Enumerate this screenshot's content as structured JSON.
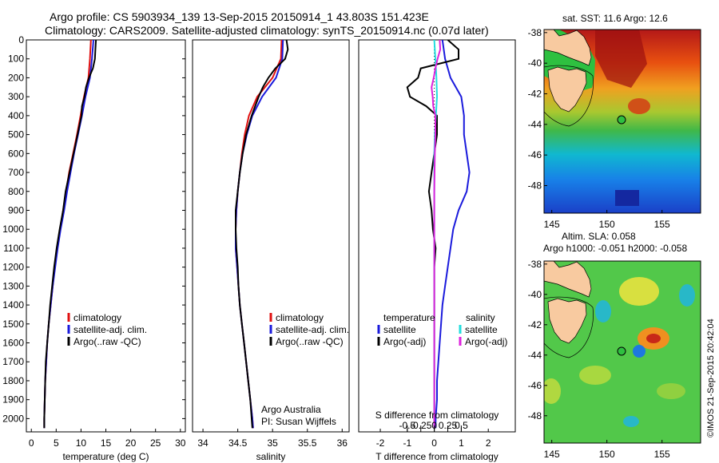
{
  "header": {
    "line1": "Argo profile: CS 5903934_139 13-Sep-2015 20150914_1 43.803S 151.423E",
    "line2": "Climatology: CARS2009. Satellite-adjusted climatology: synTS_20150914.nc (0.07d later)"
  },
  "colors": {
    "climatology": "#e01010",
    "satellite": "#1a1adc",
    "argo": "#000000",
    "satellite_s": "#22dddd",
    "argo_s": "#dd22dd",
    "land": "#f8caa0"
  },
  "chart_data": [
    {
      "type": "line",
      "name": "temperature",
      "xlabel": "temperature (deg C)",
      "ylabel": "",
      "xlim": [
        -1,
        31
      ],
      "ylim": [
        2070,
        0
      ],
      "xticks": [
        0,
        5,
        10,
        15,
        20,
        25,
        30
      ],
      "yticks": [
        0,
        100,
        200,
        300,
        400,
        500,
        600,
        700,
        800,
        900,
        1000,
        1100,
        1200,
        1300,
        1400,
        1500,
        1600,
        1700,
        1800,
        1900,
        2000
      ],
      "legend": [
        "climatology",
        "satellite-adj. clim.",
        "Argo(..raw -QC)"
      ],
      "series": [
        {
          "name": "climatology",
          "depth": [
            0,
            100,
            200,
            300,
            400,
            500,
            600,
            700,
            800,
            900,
            1000,
            1100,
            1200,
            1300,
            1400,
            1500,
            1600,
            1700,
            1800,
            1900,
            2000,
            2050
          ],
          "values": [
            12.0,
            11.8,
            11.5,
            10.6,
            9.9,
            9.2,
            8.4,
            7.6,
            7.0,
            6.4,
            5.8,
            5.2,
            4.7,
            4.3,
            3.9,
            3.5,
            3.2,
            3.0,
            2.8,
            2.7,
            2.6,
            2.6
          ]
        },
        {
          "name": "satellite-adj. clim.",
          "depth": [
            0,
            100,
            200,
            300,
            400,
            500,
            600,
            700,
            800,
            900,
            1000,
            1100,
            1200,
            1300,
            1400,
            1500,
            1600,
            1700,
            1800,
            1900,
            2000,
            2050
          ],
          "values": [
            12.5,
            12.2,
            11.8,
            10.9,
            10.2,
            9.4,
            8.6,
            7.9,
            7.2,
            6.6,
            5.9,
            5.3,
            4.8,
            4.3,
            3.9,
            3.5,
            3.2,
            3.0,
            2.8,
            2.7,
            2.6,
            2.6
          ]
        },
        {
          "name": "Argo(..raw -QC)",
          "depth": [
            0,
            50,
            100,
            150,
            200,
            250,
            300,
            350,
            400,
            450,
            500,
            600,
            700,
            800,
            900,
            1000,
            1100,
            1200,
            1300,
            1400,
            1500,
            1600,
            1700,
            1800,
            1900,
            2000,
            2050
          ],
          "values": [
            13.0,
            12.9,
            12.8,
            12.4,
            11.6,
            11.0,
            10.7,
            10.2,
            10.1,
            9.7,
            9.3,
            8.5,
            7.7,
            6.9,
            6.4,
            5.7,
            5.1,
            4.6,
            4.2,
            3.8,
            3.5,
            3.2,
            2.9,
            2.8,
            2.7,
            2.6,
            2.6
          ]
        }
      ]
    },
    {
      "type": "line",
      "name": "salinity",
      "xlabel": "salinity",
      "xlim": [
        33.85,
        36.1
      ],
      "ylim": [
        2070,
        0
      ],
      "xticks": [
        34,
        34.5,
        35,
        35.5,
        36
      ],
      "xticklabels": [
        "34",
        "34.5",
        "35",
        "35.5",
        "36"
      ],
      "legend": [
        "climatology",
        "satellite-adj. clim.",
        "Argo(..raw -QC)"
      ],
      "annotation": [
        "Argo Australia",
        "PI: Susan Wijffels"
      ],
      "series": [
        {
          "name": "climatology",
          "depth": [
            0,
            100,
            200,
            300,
            400,
            500,
            600,
            700,
            800,
            900,
            1000,
            1100,
            1200,
            1300,
            1400,
            1500,
            1600,
            1700,
            1800,
            1900,
            2000,
            2050
          ],
          "values": [
            35.13,
            35.12,
            35.0,
            34.78,
            34.66,
            34.6,
            34.56,
            34.53,
            34.5,
            34.48,
            34.47,
            34.47,
            34.49,
            34.51,
            34.53,
            34.56,
            34.59,
            34.62,
            34.65,
            34.68,
            34.71,
            34.72
          ]
        },
        {
          "name": "satellite-adj. clim.",
          "depth": [
            0,
            100,
            200,
            300,
            400,
            500,
            600,
            700,
            800,
            900,
            1000,
            1100,
            1200,
            1300,
            1400,
            1500,
            1600,
            1700,
            1800,
            1900,
            2000,
            2050
          ],
          "values": [
            35.15,
            35.14,
            35.05,
            34.85,
            34.71,
            34.63,
            34.57,
            34.53,
            34.5,
            34.48,
            34.47,
            34.47,
            34.49,
            34.51,
            34.53,
            34.56,
            34.59,
            34.62,
            34.65,
            34.68,
            34.71,
            34.72
          ]
        },
        {
          "name": "Argo(..raw -QC)",
          "depth": [
            0,
            50,
            100,
            150,
            200,
            250,
            300,
            350,
            400,
            500,
            600,
            700,
            800,
            900,
            1000,
            1100,
            1200,
            1300,
            1400,
            1500,
            1600,
            1700,
            1800,
            1900,
            2000,
            2050
          ],
          "values": [
            35.2,
            35.22,
            35.18,
            35.04,
            34.94,
            34.86,
            34.8,
            34.75,
            34.7,
            34.62,
            34.57,
            34.53,
            34.5,
            34.47,
            34.47,
            34.48,
            34.5,
            34.51,
            34.53,
            34.56,
            34.59,
            34.62,
            34.65,
            34.68,
            34.7,
            34.71
          ]
        }
      ]
    },
    {
      "type": "line",
      "name": "difference",
      "xlabel": "T difference from climatology",
      "top_label": "S difference from climatology",
      "xlim": [
        -2.8,
        3.0
      ],
      "ylim": [
        2070,
        0
      ],
      "xticks": [
        -2,
        -1,
        0,
        1,
        2
      ],
      "s_ticks": [
        -0.5,
        -0.25,
        0,
        0.25,
        0.5
      ],
      "s_ticklabels": [
        "-0.5",
        "-0.25",
        "0",
        "0.25",
        "0.5"
      ],
      "legend": {
        "temperature_header": "temperature",
        "salinity_header": "salinity",
        "temperature": [
          "satellite",
          "Argo(-adj)"
        ],
        "salinity": [
          "satellite",
          "Argo(-adj)"
        ]
      },
      "series": [
        {
          "name": "temperature satellite",
          "depth": [
            0,
            100,
            200,
            300,
            400,
            500,
            600,
            700,
            800,
            900,
            1000,
            1100,
            1200,
            1300,
            1400,
            1500,
            1600,
            1700,
            1800,
            1900,
            2000,
            2050
          ],
          "values": [
            0.3,
            0.4,
            0.6,
            1.0,
            1.1,
            1.1,
            1.2,
            1.3,
            1.2,
            0.9,
            0.7,
            0.6,
            0.5,
            0.4,
            0.3,
            0.25,
            0.2,
            0.15,
            0.1,
            0.1,
            0.05,
            0.05
          ]
        },
        {
          "name": "temperature Argo(-adj)",
          "depth": [
            0,
            50,
            100,
            150,
            200,
            250,
            300,
            350,
            400,
            500,
            600,
            700,
            800,
            900,
            1000,
            1100,
            1200,
            1300,
            1400,
            1500,
            1600,
            1700,
            1800,
            1900,
            2000,
            2050
          ],
          "values": [
            0.5,
            0.9,
            0.9,
            -0.5,
            -0.6,
            -1.0,
            -0.9,
            -0.3,
            0.1,
            0.1,
            0.0,
            -0.1,
            -0.2,
            -0.1,
            -0.05,
            0.05,
            0.0,
            0.0,
            0.0,
            0.0,
            0.0,
            0.0,
            0.0,
            0.0,
            0.0,
            0.0
          ]
        },
        {
          "name": "salinity satellite",
          "depth": [
            0,
            100,
            200,
            300,
            400,
            500,
            600,
            700,
            800,
            900,
            1000,
            1200,
            1400,
            1600,
            1800,
            2000,
            2050
          ],
          "values": [
            0.0,
            0.02,
            0.04,
            0.05,
            0.03,
            0.01,
            0.0,
            0.0,
            0.0,
            0.0,
            0.0,
            0.0,
            0.0,
            0.0,
            0.0,
            0.0,
            0.0
          ]
        },
        {
          "name": "salinity Argo(-adj)",
          "depth": [
            0,
            50,
            100,
            150,
            200,
            250,
            300,
            350,
            400,
            500,
            600,
            800,
            1000,
            1200,
            1400,
            1600,
            1800,
            2000,
            2050
          ],
          "values": [
            0.1,
            0.11,
            0.06,
            0.02,
            -0.01,
            -0.05,
            -0.03,
            -0.02,
            0.02,
            0.02,
            0.01,
            0.0,
            0.0,
            0.0,
            0.0,
            0.0,
            0.0,
            0.0,
            0.0
          ]
        }
      ]
    },
    {
      "type": "heatmap",
      "name": "sst_map",
      "title": "sat. SST: 11.6  Argo: 12.6",
      "xticks": [
        145,
        150,
        155
      ],
      "yticks": [
        -38,
        -40,
        -42,
        -44,
        -46,
        -48
      ],
      "float_position": [
        151.42,
        -43.8
      ]
    },
    {
      "type": "heatmap",
      "name": "sla_map",
      "title_line1": "Altim. SLA: 0.058",
      "title_line2": "Argo h1000: -0.051 h2000: -0.058",
      "xticks": [
        145,
        150,
        155
      ],
      "yticks": [
        -38,
        -40,
        -42,
        -44,
        -46,
        -48
      ],
      "float_position": [
        151.42,
        -43.8
      ]
    }
  ],
  "credit": "©IMOS 21-Sep-2015 20:42:04"
}
